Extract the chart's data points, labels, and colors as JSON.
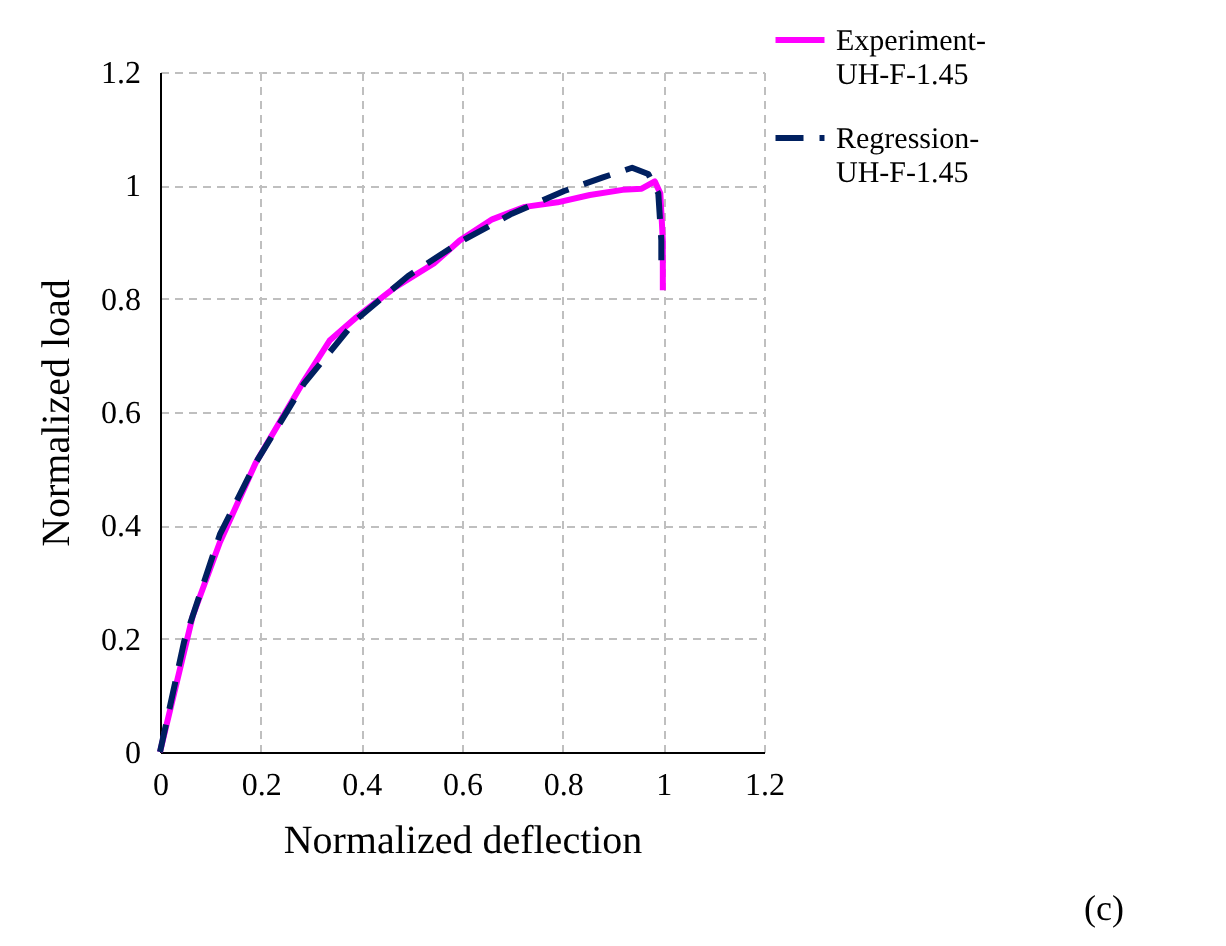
{
  "chart_data": {
    "type": "line",
    "xlabel": "Normalized deflection",
    "ylabel": "Normalized load",
    "xlim": [
      0,
      1.2
    ],
    "xticks": [
      0,
      0.2,
      0.4,
      0.6,
      0.8,
      1,
      1.2
    ],
    "ylim": [
      0,
      1.2
    ],
    "yticks": [
      0,
      0.2,
      0.4,
      0.6,
      0.8,
      1,
      1.2
    ],
    "grid": true,
    "legend": "top right",
    "annotations": [
      "(c)"
    ],
    "series": [
      {
        "name": "Experiment-UH-F-1.45",
        "color": "#ff00ff",
        "line_style": "solid",
        "x": [
          0,
          0.065,
          0.119,
          0.19,
          0.286,
          0.337,
          0.39,
          0.467,
          0.544,
          0.596,
          0.66,
          0.725,
          0.79,
          0.854,
          0.919,
          0.957,
          0.983,
          0.994,
          0.999,
          0.999
        ],
        "values": [
          0,
          0.24,
          0.37,
          0.51,
          0.655,
          0.726,
          0.767,
          0.82,
          0.862,
          0.903,
          0.94,
          0.962,
          0.97,
          0.983,
          0.992,
          0.994,
          1.007,
          0.986,
          0.903,
          0.815
        ]
      },
      {
        "name": "Regression-UH-F-1.45",
        "color": "#002060",
        "line_style": "dashed",
        "x": [
          0,
          0.048,
          0.119,
          0.19,
          0.286,
          0.39,
          0.493,
          0.596,
          0.699,
          0.803,
          0.88,
          0.938,
          0.97,
          0.99,
          0.996,
          0.996
        ],
        "values": [
          0,
          0.195,
          0.384,
          0.51,
          0.65,
          0.763,
          0.84,
          0.9,
          0.95,
          0.99,
          1.014,
          1.031,
          1.02,
          0.986,
          0.903,
          0.868
        ]
      }
    ]
  }
}
